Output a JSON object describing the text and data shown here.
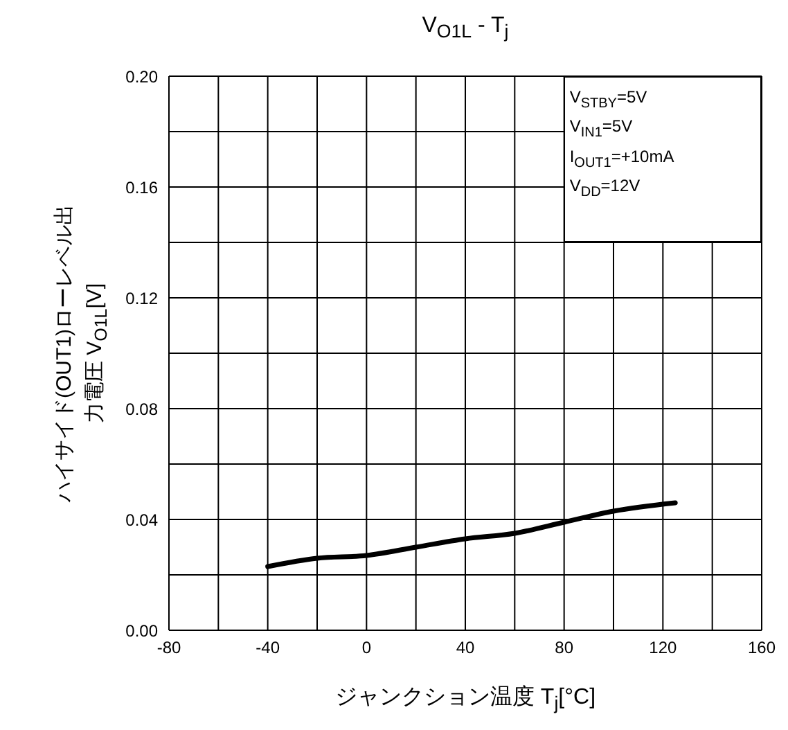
{
  "chart_data": {
    "type": "line",
    "title": "V$_{O1L}$ - T$_{j}$",
    "xlabel": "ジャンクション温度 T$_{j}$[°C]",
    "ylabel": "ハイサイド(OUT1)ローレベル出力電圧 V$_{O1L}$[V]",
    "annotations": [
      "V$_{STBY}$=5V",
      "V$_{IN1}$=5V",
      "I$_{OUT1}$=+10mA",
      "V$_{DD}$=12V"
    ],
    "x": [
      -40,
      -20,
      0,
      20,
      40,
      60,
      80,
      100,
      125
    ],
    "series": [
      {
        "color": "#000000",
        "values": [
          0.023,
          0.026,
          0.027,
          0.03,
          0.033,
          0.035,
          0.039,
          0.043,
          0.046
        ]
      }
    ],
    "xlim": [
      -80,
      160
    ],
    "xticks": [
      -80,
      {
        "value": -60,
        "label": null
      },
      -40,
      {
        "value": -20,
        "label": null
      },
      0,
      {
        "value": 20,
        "label": null
      },
      40,
      {
        "value": 60,
        "label": null
      },
      80,
      {
        "value": 100,
        "label": null
      },
      120,
      {
        "value": 140,
        "label": null
      },
      160
    ],
    "ylim": [
      0,
      0.2
    ],
    "yticks": [
      {
        "value": 0,
        "label": "0.00"
      },
      {
        "value": 0.02,
        "label": null
      },
      {
        "value": 0.04,
        "label": "0.04"
      },
      {
        "value": 0.06,
        "label": null
      },
      {
        "value": 0.08,
        "label": "0.08"
      },
      {
        "value": 0.1,
        "label": null
      },
      {
        "value": 0.12,
        "label": "0.12"
      },
      {
        "value": 0.14,
        "label": null
      },
      {
        "value": 0.16,
        "label": "0.16"
      },
      {
        "value": 0.18,
        "label": null
      },
      {
        "value": 0.2,
        "label": "0.20"
      }
    ],
    "grid": true,
    "marker": "none",
    "line_style": "solid"
  }
}
